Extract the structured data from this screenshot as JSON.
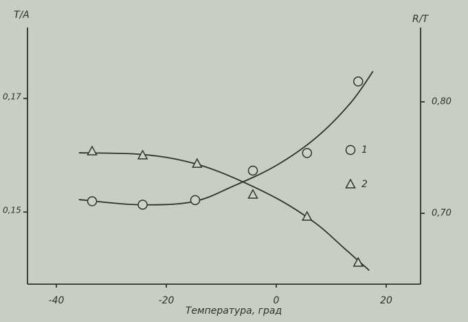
{
  "chart_data": {
    "type": "scatter",
    "x_label": "Температура, град",
    "y_label": "T/A",
    "y2_label": "R/T",
    "xlim": [
      -45.25,
      26.25
    ],
    "xticks": [
      -40,
      -20,
      0,
      20
    ],
    "ylim": [
      0.1373,
      0.1825
    ],
    "yticks": [
      {
        "value": 0.15,
        "label": "0,15"
      },
      {
        "value": 0.17,
        "label": "0,17"
      }
    ],
    "y2lim": [
      0.6364,
      0.8667
    ],
    "y2ticks": [
      {
        "value": 0.7,
        "label": "0,70"
      },
      {
        "value": 0.8,
        "label": "0,80"
      }
    ],
    "color": "#2e302c",
    "series": [
      {
        "name": "1",
        "marker": "circle",
        "axis": "y",
        "x": [
          -33.5,
          -24.3,
          -14.75,
          -4.25,
          5.6,
          14.9
        ],
        "values": [
          0.1519,
          0.1513,
          0.1521,
          0.1573,
          0.1604,
          0.173
        ]
      },
      {
        "name": "2",
        "marker": "triangle",
        "axis": "y2",
        "x": [
          -33.5,
          -24.3,
          -14.4,
          -4.25,
          5.6,
          14.9
        ],
        "values": [
          0.7556,
          0.7519,
          0.7444,
          0.7167,
          0.6969,
          0.6556
        ]
      }
    ],
    "curves": [
      {
        "axis": "y",
        "x": [
          -35.9,
          -25.25,
          -15.25,
          -7.75,
          0,
          7.25,
          13.5,
          17.6
        ],
        "values": [
          0.1522,
          0.1513,
          0.1518,
          0.1546,
          0.1582,
          0.1631,
          0.1692,
          0.1748
        ]
      },
      {
        "axis": "y2",
        "x": [
          -35.9,
          -25.25,
          -17.75,
          -10.25,
          0,
          7.25,
          12.25,
          16.9
        ],
        "values": [
          0.7543,
          0.7531,
          0.7481,
          0.737,
          0.7136,
          0.6907,
          0.6691,
          0.6488
        ]
      }
    ]
  }
}
